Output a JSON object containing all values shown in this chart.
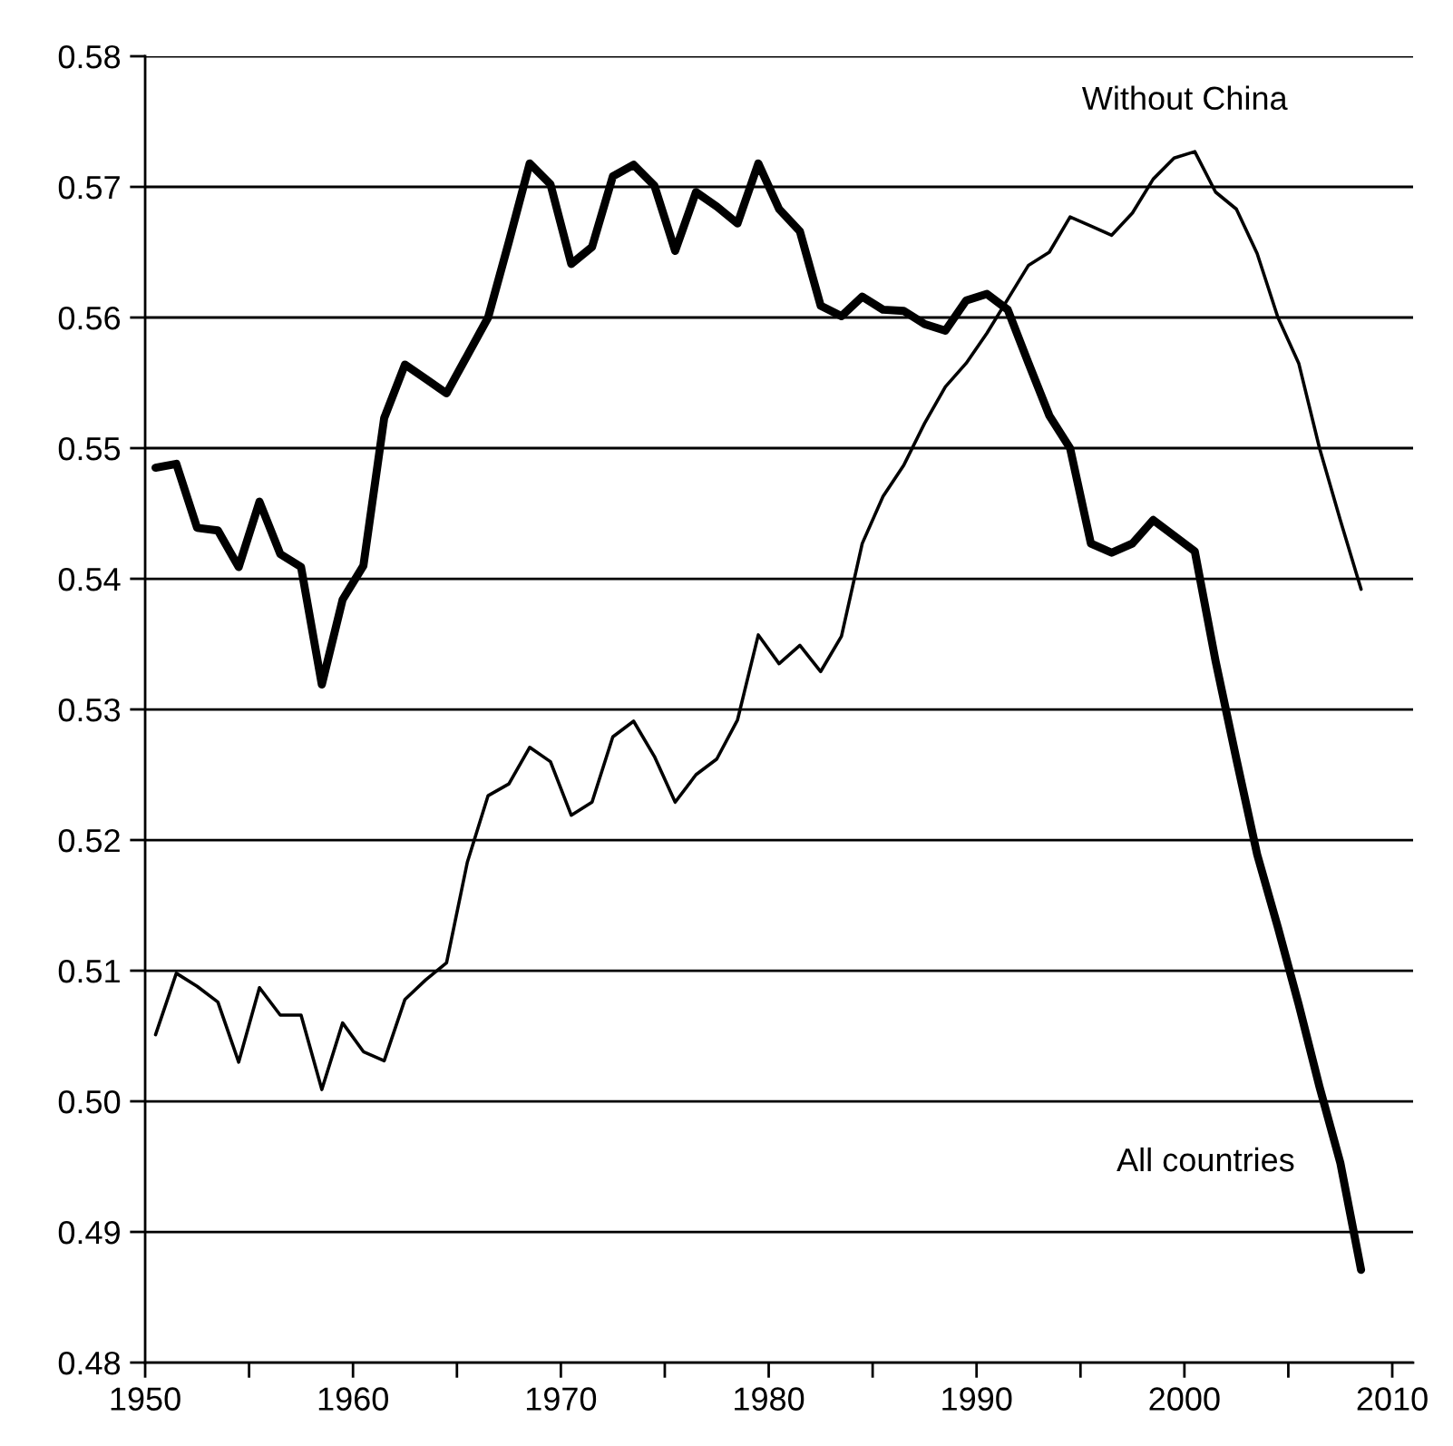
{
  "chart_data": {
    "type": "line",
    "x": [
      1950.5,
      1951.5,
      1952.5,
      1953.5,
      1954.5,
      1955.5,
      1956.5,
      1957.5,
      1958.5,
      1959.5,
      1960.5,
      1961.5,
      1962.5,
      1963.5,
      1964.5,
      1965.5,
      1966.5,
      1967.5,
      1968.5,
      1969.5,
      1970.5,
      1971.5,
      1972.5,
      1973.5,
      1974.5,
      1975.5,
      1976.5,
      1977.5,
      1978.5,
      1979.5,
      1980.5,
      1981.5,
      1982.5,
      1983.5,
      1984.5,
      1985.5,
      1986.5,
      1987.5,
      1988.5,
      1989.5,
      1990.5,
      1991.5,
      1992.5,
      1993.5,
      1994.5,
      1995.5,
      1996.5,
      1997.5,
      1998.5,
      1999.5,
      2000.5,
      2001.5,
      2002.5,
      2003.5,
      2004.5,
      2005.5,
      2006.5,
      2007.5,
      2008.5
    ],
    "series": [
      {
        "name": "All countries",
        "color": "#000000",
        "values": [
          0.5485,
          0.5488,
          0.5439,
          0.5437,
          0.5409,
          0.5459,
          0.5419,
          0.5409,
          0.5319,
          0.5384,
          0.541,
          0.5523,
          0.5564,
          0.5553,
          0.5542,
          0.5571,
          0.56,
          0.5658,
          0.5718,
          0.5702,
          0.5641,
          0.5654,
          0.5708,
          0.5717,
          0.5701,
          0.5651,
          0.5696,
          0.5685,
          0.5672,
          0.5718,
          0.5683,
          0.5666,
          0.5609,
          0.5601,
          0.5616,
          0.5606,
          0.5605,
          0.5595,
          0.559,
          0.5613,
          0.5618,
          0.5606,
          0.5565,
          0.5525,
          0.55,
          0.5427,
          0.542,
          0.5427,
          0.5445,
          0.5433,
          0.5421,
          0.5337,
          0.5262,
          0.5189,
          0.5133,
          0.5074,
          0.5011,
          0.4953,
          0.4871
        ]
      },
      {
        "name": "Without China",
        "color": "#000000",
        "values": [
          0.5051,
          0.5098,
          0.5088,
          0.5076,
          0.503,
          0.5087,
          0.5066,
          0.5066,
          0.5009,
          0.506,
          0.5038,
          0.5031,
          0.5078,
          0.5093,
          0.5106,
          0.5183,
          0.5234,
          0.5243,
          0.5271,
          0.526,
          0.5219,
          0.5229,
          0.5279,
          0.5291,
          0.5264,
          0.5229,
          0.525,
          0.5262,
          0.5292,
          0.5357,
          0.5335,
          0.5349,
          0.5329,
          0.5356,
          0.5427,
          0.5463,
          0.5487,
          0.5519,
          0.5547,
          0.5565,
          0.5588,
          0.5614,
          0.564,
          0.565,
          0.5677,
          0.567,
          0.5663,
          0.568,
          0.5706,
          0.5722,
          0.5727,
          0.5696,
          0.5683,
          0.5649,
          0.56,
          0.5565,
          0.55,
          0.5445,
          0.5392
        ]
      }
    ],
    "xlim": [
      1950,
      2011
    ],
    "xticks": [
      1950,
      {
        "value": 1955,
        "label": null
      },
      1960,
      {
        "value": 1965,
        "label": null
      },
      1970,
      {
        "value": 1975,
        "label": null
      },
      1980,
      {
        "value": 1985,
        "label": null
      },
      1990,
      {
        "value": 1995,
        "label": null
      },
      2000,
      {
        "value": 2005,
        "label": null
      },
      2010
    ],
    "ylim": [
      0.48,
      0.58
    ],
    "yticks": [
      {
        "value": 0.48,
        "label": "0.48"
      },
      {
        "value": 0.49,
        "label": "0.49"
      },
      {
        "value": 0.5,
        "label": "0.50"
      },
      {
        "value": 0.51,
        "label": "0.51"
      },
      {
        "value": 0.52,
        "label": "0.52"
      },
      {
        "value": 0.53,
        "label": "0.53"
      },
      {
        "value": 0.54,
        "label": "0.54"
      },
      {
        "value": 0.55,
        "label": "0.55"
      },
      {
        "value": 0.56,
        "label": "0.56"
      },
      {
        "value": 0.57,
        "label": "0.57"
      },
      {
        "value": 0.58,
        "label": "0.58"
      }
    ],
    "grid": "y",
    "legend": false,
    "marker": "none",
    "line_style": "solid"
  }
}
